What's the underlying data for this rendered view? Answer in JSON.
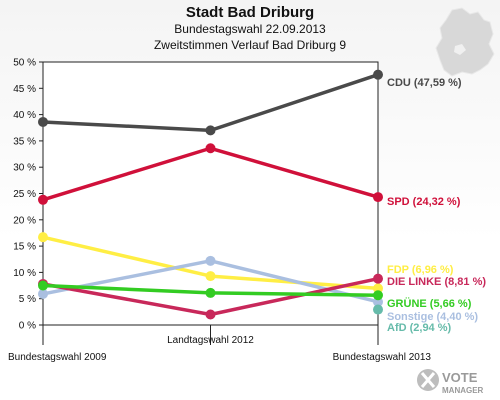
{
  "header": {
    "title": "Stadt Bad Driburg",
    "subtitle1": "Bundestagswahl 22.09.2013",
    "subtitle2": "Zweitstimmen Verlauf Bad Driburg 9"
  },
  "logo": {
    "line1": "VOTE",
    "line2": "MANAGER"
  },
  "chart_data": {
    "type": "line",
    "categories": [
      "Bundestagswahl 2009",
      "Landtagswahl 2012",
      "Bundestagswahl 2013"
    ],
    "ylim": [
      0,
      50
    ],
    "yticks": [
      "0 %",
      "5 %",
      "10 %",
      "15 %",
      "20 %",
      "25 %",
      "30 %",
      "35 %",
      "40 %",
      "45 %",
      "50 %"
    ],
    "grid": false,
    "series": [
      {
        "name": "CDU",
        "label": "CDU (47,59 %)",
        "color": "#4a4a4a",
        "values": [
          38.6,
          37.0,
          47.59
        ]
      },
      {
        "name": "SPD",
        "label": "SPD (24,32 %)",
        "color": "#d0103a",
        "values": [
          23.8,
          33.6,
          24.32
        ]
      },
      {
        "name": "FDP",
        "label": "FDP (6,96 %)",
        "color": "#ffee44",
        "values": [
          16.7,
          9.3,
          6.96
        ]
      },
      {
        "name": "Sonstige",
        "label": "Sonstige (4,40 %)",
        "color": "#aabfe0",
        "values": [
          5.9,
          12.2,
          4.4
        ]
      },
      {
        "name": "DIE LINKE",
        "label": "DIE LINKE (8,81 %)",
        "color": "#c8285a",
        "values": [
          7.8,
          2.0,
          8.81
        ]
      },
      {
        "name": "GRÜNE",
        "label": "GRÜNE (5,66 %)",
        "color": "#33cc22",
        "values": [
          7.5,
          6.1,
          5.66
        ]
      },
      {
        "name": "AfD",
        "label": "AfD (2,94 %)",
        "color": "#66bbaa",
        "values": [
          null,
          null,
          2.94
        ]
      }
    ]
  }
}
